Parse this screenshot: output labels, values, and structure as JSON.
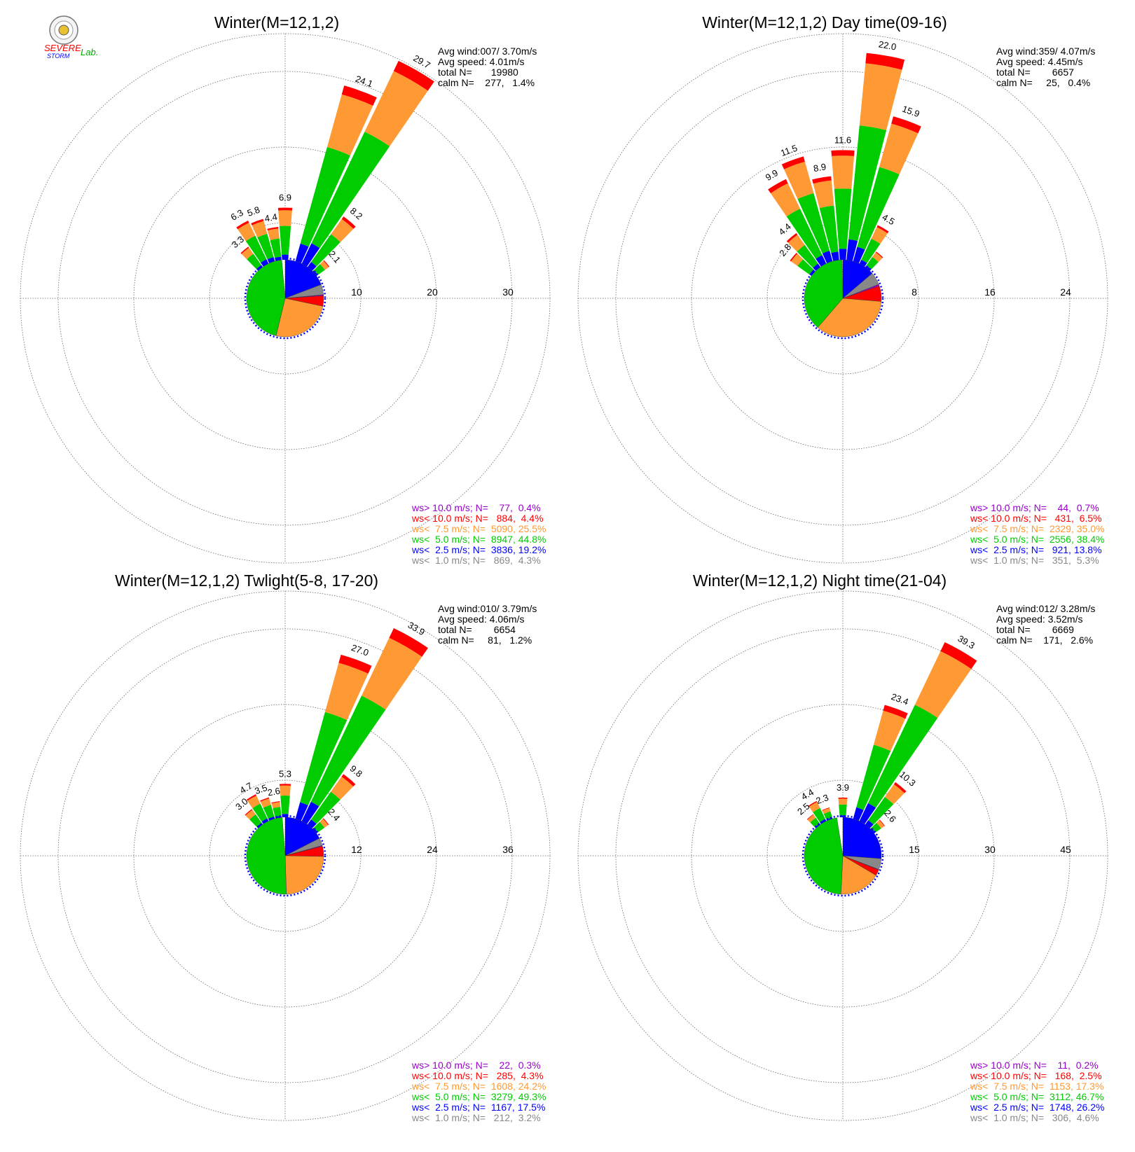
{
  "logo": {
    "name": "Severe Storm Lab.",
    "text_severe": "SEVERE",
    "text_storm": "STORM",
    "text_lab": "Lab.",
    "colors": {
      "s1": "#0000ff",
      "s2": "#ff0000",
      "lab": "#00aa00"
    }
  },
  "colors": {
    "gt10": "#9900cc",
    "lt10": "#ff0000",
    "lt7_5": "#ff9933",
    "lt5": "#00cc00",
    "lt2_5": "#0000ff",
    "lt1": "#888888",
    "grid": "#666666"
  },
  "chart_data": [
    {
      "type": "windrose",
      "title": "Winter(M=12,1,2)",
      "info": {
        "avg_wind": "Avg wind:007/ 3.70m/s",
        "avg_speed": "Avg speed: 4.01m/s",
        "total": "total N=       19980",
        "calm": "calm N=    277,   1.4%"
      },
      "rmax": 35,
      "rings": [
        10,
        20,
        30
      ],
      "ring_labels": [
        "10",
        "20",
        "30"
      ],
      "petals": [
        {
          "dir": 0,
          "total": 6.9,
          "label": "6.9"
        },
        {
          "dir": 20,
          "total": 24.1,
          "label": "24.1"
        },
        {
          "dir": 30,
          "total": 29.7,
          "label": "29.7"
        },
        {
          "dir": 40,
          "total": 8.2,
          "label": "8.2"
        },
        {
          "dir": 50,
          "total": 2.1,
          "label": "2.1"
        },
        {
          "dir": -10,
          "total": 4.4,
          "label": "4.4"
        },
        {
          "dir": -20,
          "total": 5.8,
          "label": "5.8"
        },
        {
          "dir": -30,
          "total": 6.3,
          "label": "6.3"
        },
        {
          "dir": -40,
          "total": 3.3,
          "label": "3.3"
        }
      ],
      "pie": [
        {
          "cls": "lt2_5",
          "pct": 19.2
        },
        {
          "cls": "lt1",
          "pct": 4.3
        },
        {
          "cls": "gt10",
          "pct": 0.4
        },
        {
          "cls": "lt10",
          "pct": 4.4
        },
        {
          "cls": "lt7_5",
          "pct": 25.5
        },
        {
          "cls": "lt5",
          "pct": 44.8
        }
      ],
      "legend": [
        {
          "cls": "gt10",
          "text": "ws> 10.0 m/s; N=    77,  0.4%"
        },
        {
          "cls": "lt10",
          "text": "ws< 10.0 m/s; N=   884,  4.4%"
        },
        {
          "cls": "lt7_5",
          "text": "ws<  7.5 m/s; N=  5090, 25.5%"
        },
        {
          "cls": "lt5",
          "text": "ws<  5.0 m/s; N=  8947, 44.8%"
        },
        {
          "cls": "lt2_5",
          "text": "ws<  2.5 m/s; N=  3836, 19.2%"
        },
        {
          "cls": "lt1",
          "text": "ws<  1.0 m/s; N=   869,  4.3%"
        }
      ]
    },
    {
      "type": "windrose",
      "title": "Winter(M=12,1,2) Day time(09-16)",
      "info": {
        "avg_wind": "Avg wind:359/ 4.07m/s",
        "avg_speed": "Avg speed: 4.45m/s",
        "total": "total N=        6657",
        "calm": "calm N=     25,   0.4%"
      },
      "rmax": 28,
      "rings": [
        8,
        16,
        24
      ],
      "ring_labels": [
        "8",
        "16",
        "24"
      ],
      "petals": [
        {
          "dir": 0,
          "total": 11.6,
          "label": "11.6"
        },
        {
          "dir": 10,
          "total": 22.0,
          "label": "22.0"
        },
        {
          "dir": 20,
          "total": 15.9,
          "label": "15.9"
        },
        {
          "dir": 30,
          "total": 4.5,
          "label": "4.5"
        },
        {
          "dir": 40,
          "total": 2.0,
          "label": ""
        },
        {
          "dir": -10,
          "total": 8.9,
          "label": "8.9"
        },
        {
          "dir": -20,
          "total": 11.5,
          "label": "11.5"
        },
        {
          "dir": -30,
          "total": 9.9,
          "label": "9.9"
        },
        {
          "dir": -40,
          "total": 4.4,
          "label": "4.4"
        },
        {
          "dir": -50,
          "total": 2.8,
          "label": "2.8"
        }
      ],
      "pie": [
        {
          "cls": "lt2_5",
          "pct": 13.8
        },
        {
          "cls": "lt1",
          "pct": 5.3
        },
        {
          "cls": "gt10",
          "pct": 0.7
        },
        {
          "cls": "lt10",
          "pct": 6.5
        },
        {
          "cls": "lt7_5",
          "pct": 35.0
        },
        {
          "cls": "lt5",
          "pct": 38.4
        }
      ],
      "legend": [
        {
          "cls": "gt10",
          "text": "ws> 10.0 m/s; N=    44,  0.7%"
        },
        {
          "cls": "lt10",
          "text": "ws< 10.0 m/s; N=   431,  6.5%"
        },
        {
          "cls": "lt7_5",
          "text": "ws<  7.5 m/s; N=  2329, 35.0%"
        },
        {
          "cls": "lt5",
          "text": "ws<  5.0 m/s; N=  2556, 38.4%"
        },
        {
          "cls": "lt2_5",
          "text": "ws<  2.5 m/s; N=   921, 13.8%"
        },
        {
          "cls": "lt1",
          "text": "ws<  1.0 m/s; N=   351,  5.3%"
        }
      ]
    },
    {
      "type": "windrose",
      "title": "Winter(M=12,1,2) Twlight(5-8, 17-20)",
      "info": {
        "avg_wind": "Avg wind:010/ 3.79m/s",
        "avg_speed": "Avg speed: 4.06m/s",
        "total": "total N=        6654",
        "calm": "calm N=     81,   1.2%"
      },
      "rmax": 42,
      "rings": [
        12,
        24,
        36
      ],
      "ring_labels": [
        "12",
        "24",
        "36"
      ],
      "petals": [
        {
          "dir": 0,
          "total": 5.3,
          "label": "5.3"
        },
        {
          "dir": 20,
          "total": 27.0,
          "label": "27.0"
        },
        {
          "dir": 30,
          "total": 33.9,
          "label": "33.9"
        },
        {
          "dir": 40,
          "total": 9.8,
          "label": "9.8"
        },
        {
          "dir": 50,
          "total": 2.4,
          "label": "2.4"
        },
        {
          "dir": -10,
          "total": 2.6,
          "label": "2.6"
        },
        {
          "dir": -20,
          "total": 3.5,
          "label": "3.5"
        },
        {
          "dir": -30,
          "total": 4.7,
          "label": "4.7"
        },
        {
          "dir": -40,
          "total": 3.0,
          "label": "3.0"
        }
      ],
      "pie": [
        {
          "cls": "lt2_5",
          "pct": 17.5
        },
        {
          "cls": "lt1",
          "pct": 3.2
        },
        {
          "cls": "gt10",
          "pct": 0.3
        },
        {
          "cls": "lt10",
          "pct": 4.3
        },
        {
          "cls": "lt7_5",
          "pct": 24.2
        },
        {
          "cls": "lt5",
          "pct": 49.3
        }
      ],
      "legend": [
        {
          "cls": "gt10",
          "text": "ws> 10.0 m/s; N=    22,  0.3%"
        },
        {
          "cls": "lt10",
          "text": "ws< 10.0 m/s; N=   285,  4.3%"
        },
        {
          "cls": "lt7_5",
          "text": "ws<  7.5 m/s; N=  1608, 24.2%"
        },
        {
          "cls": "lt5",
          "text": "ws<  5.0 m/s; N=  3279, 49.3%"
        },
        {
          "cls": "lt2_5",
          "text": "ws<  2.5 m/s; N=  1167, 17.5%"
        },
        {
          "cls": "lt1",
          "text": "ws<  1.0 m/s; N=   212,  3.2%"
        }
      ]
    },
    {
      "type": "windrose",
      "title": "Winter(M=12,1,2) Night time(21-04)",
      "info": {
        "avg_wind": "Avg wind:012/ 3.28m/s",
        "avg_speed": "Avg speed: 3.52m/s",
        "total": "total N=        6669",
        "calm": "calm N=    171,   2.6%"
      },
      "rmax": 52.5,
      "rings": [
        15,
        30,
        45
      ],
      "ring_labels": [
        "15",
        "30",
        "45"
      ],
      "petals": [
        {
          "dir": 0,
          "total": 3.9,
          "label": "3.9"
        },
        {
          "dir": 20,
          "total": 23.4,
          "label": "23.4"
        },
        {
          "dir": 30,
          "total": 39.3,
          "label": "39.3"
        },
        {
          "dir": 40,
          "total": 10.3,
          "label": "10.3"
        },
        {
          "dir": 50,
          "total": 2.6,
          "label": "2.6"
        },
        {
          "dir": -20,
          "total": 2.3,
          "label": "2.3"
        },
        {
          "dir": -30,
          "total": 4.4,
          "label": "4.4"
        },
        {
          "dir": -40,
          "total": 2.5,
          "label": "2.5"
        }
      ],
      "pie": [
        {
          "cls": "lt2_5",
          "pct": 26.2
        },
        {
          "cls": "lt1",
          "pct": 4.6
        },
        {
          "cls": "gt10",
          "pct": 0.2
        },
        {
          "cls": "lt10",
          "pct": 2.5
        },
        {
          "cls": "lt7_5",
          "pct": 17.3
        },
        {
          "cls": "lt5",
          "pct": 46.7
        }
      ],
      "legend": [
        {
          "cls": "gt10",
          "text": "ws> 10.0 m/s; N=    11,  0.2%"
        },
        {
          "cls": "lt10",
          "text": "ws< 10.0 m/s; N=   168,  2.5%"
        },
        {
          "cls": "lt7_5",
          "text": "ws<  7.5 m/s; N=  1153, 17.3%"
        },
        {
          "cls": "lt5",
          "text": "ws<  5.0 m/s; N=  3112, 46.7%"
        },
        {
          "cls": "lt2_5",
          "text": "ws<  2.5 m/s; N=  1748, 26.2%"
        },
        {
          "cls": "lt1",
          "text": "ws<  1.0 m/s; N=   306,  4.6%"
        }
      ]
    }
  ]
}
